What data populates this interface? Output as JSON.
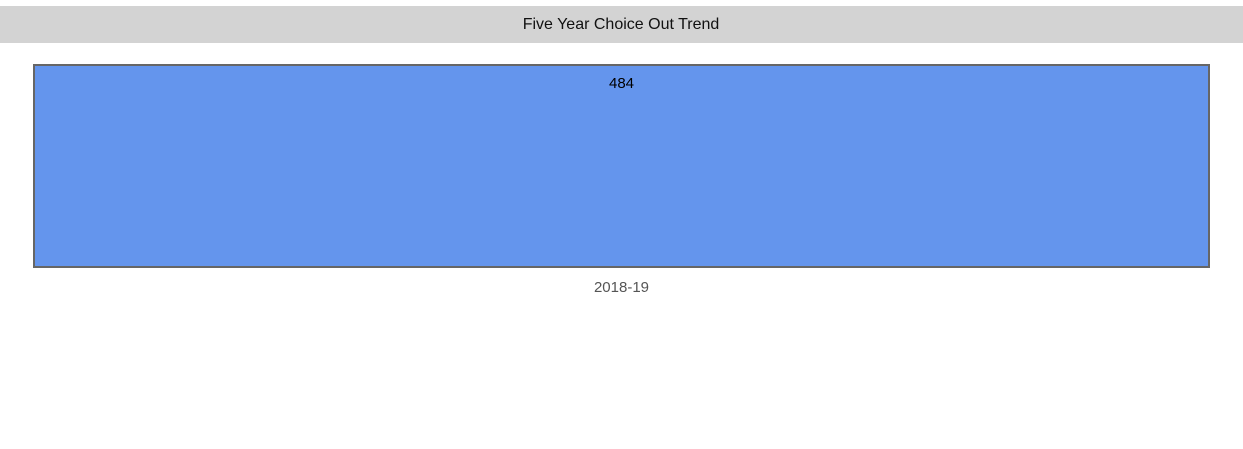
{
  "chart_data": {
    "type": "bar",
    "title": "Five Year Choice Out Trend",
    "categories": [
      "2018-19"
    ],
    "values": [
      484
    ],
    "color": "#6495ed"
  }
}
